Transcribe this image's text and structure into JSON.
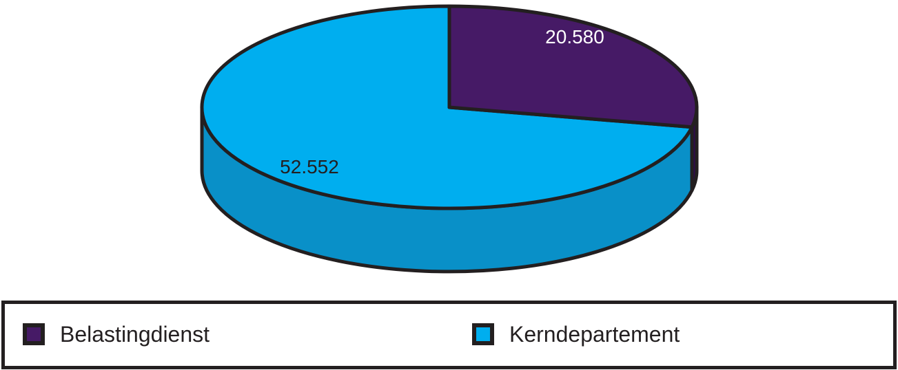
{
  "chart_data": {
    "type": "pie",
    "style": "3d",
    "title": "",
    "direction": "clockwise",
    "start_angle_deg": 0,
    "legend_position": "bottom",
    "outline_color": "#231f20",
    "background_color": "#ffffff",
    "slices": [
      {
        "label": "Belastingdienst",
        "value": 20580,
        "value_label": "20.580",
        "color_top": "#461a66",
        "color_side": "#2e0a4b",
        "value_label_color": "#ffffff"
      },
      {
        "label": "Kerndepartement",
        "value": 52552,
        "value_label": "52.552",
        "color_top": "#00aeef",
        "color_side": "#0990c8",
        "value_label_color": "#231f20"
      }
    ]
  },
  "legend": {
    "items": [
      {
        "label": "Belastingdienst",
        "color": "#461a66"
      },
      {
        "label": "Kerndepartement",
        "color": "#00aeef"
      }
    ]
  }
}
